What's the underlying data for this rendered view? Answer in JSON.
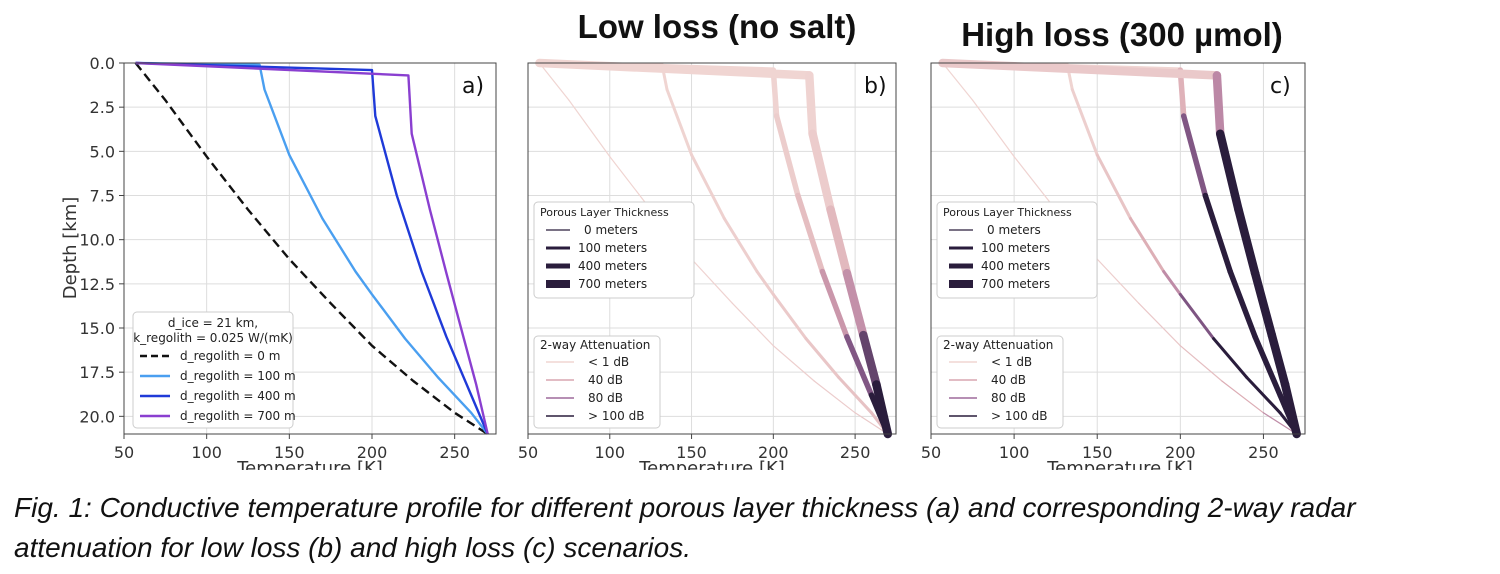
{
  "chart_data": [
    {
      "type": "line",
      "panel_label": "a)",
      "title": "",
      "xlabel": "Temperature [K]",
      "ylabel": "Depth [km]",
      "xlim": [
        50,
        275
      ],
      "ylim": [
        21,
        0
      ],
      "xticks": [
        "50",
        "100",
        "150",
        "200",
        "250"
      ],
      "yticks": [
        "0.0",
        "2.5",
        "5.0",
        "7.5",
        "10.0",
        "12.5",
        "15.0",
        "17.5",
        "20.0"
      ],
      "grid": true,
      "legend": {
        "placement": "bottom-left",
        "header_line1": "d_ice = 21 km,",
        "header_line2": "k_regolith = 0.025 W/(mK)",
        "entries": [
          "d_regolith = 0 m",
          "d_regolith = 100 m",
          "d_regolith = 400 m",
          "d_regolith = 700 m"
        ]
      },
      "series": [
        {
          "name": "d_regolith = 0 m",
          "color": "#111111",
          "dashed": true,
          "x": [
            57,
            75,
            100,
            125,
            150,
            175,
            200,
            225,
            250,
            270
          ],
          "y": [
            0,
            2.1,
            5.3,
            8.3,
            11.1,
            13.6,
            16.0,
            18.0,
            19.8,
            21
          ]
        },
        {
          "name": "d_regolith = 100 m",
          "color": "#4a9ff0",
          "x": [
            57,
            132,
            135,
            150,
            170,
            190,
            200,
            220,
            240,
            260,
            270
          ],
          "y": [
            0,
            0.1,
            1.5,
            5.2,
            8.8,
            11.8,
            13.1,
            15.6,
            17.8,
            19.8,
            21
          ]
        },
        {
          "name": "d_regolith = 400 m",
          "color": "#1f3ad8",
          "x": [
            57,
            200,
            202,
            215,
            230,
            245,
            260,
            270
          ],
          "y": [
            0,
            0.4,
            3.0,
            7.5,
            11.8,
            15.5,
            18.8,
            21
          ]
        },
        {
          "name": "d_regolith = 700 m",
          "color": "#8a3fd0",
          "x": [
            57,
            222,
            224,
            235,
            245,
            255,
            263,
            270
          ],
          "y": [
            0,
            0.7,
            4.0,
            8.3,
            11.9,
            15.4,
            18.2,
            21
          ]
        }
      ]
    },
    {
      "type": "line",
      "panel_label": "b)",
      "title": "Low loss (no salt)",
      "xlabel": "Temperature [K]",
      "ylabel": "",
      "xlim": [
        50,
        275
      ],
      "ylim": [
        21,
        0
      ],
      "xticks": [
        "50",
        "100",
        "150",
        "200",
        "250"
      ],
      "yticks": [
        "0.0",
        "2.5",
        "5.0",
        "7.5",
        "10.0",
        "12.5",
        "15.0",
        "17.5",
        "20.0"
      ],
      "grid": true,
      "legend": {
        "placement": "center-left",
        "thickness_title": "Porous Layer Thickness",
        "thickness_entries": [
          "0 meters",
          "100 meters",
          "400 meters",
          "700 meters"
        ],
        "attenuation_title": "2-way Attenuation",
        "attenuation_entries": [
          "< 1 dB",
          "40 dB",
          "80 dB",
          "> 100 dB"
        ]
      },
      "series": [
        {
          "name": "0 meters",
          "x": [
            57,
            75,
            100,
            125,
            150,
            175,
            200,
            225,
            250,
            270
          ],
          "y": [
            0,
            2.1,
            5.3,
            8.3,
            11.1,
            13.6,
            16.0,
            18.0,
            19.8,
            21
          ],
          "attenuation_db": [
            0,
            0.2,
            0.5,
            0.8,
            1.2,
            2,
            4,
            6,
            9,
            12
          ]
        },
        {
          "name": "100 meters",
          "x": [
            57,
            132,
            135,
            150,
            170,
            190,
            200,
            220,
            240,
            260,
            270
          ],
          "y": [
            0,
            0.1,
            1.5,
            5.2,
            8.8,
            11.8,
            13.1,
            15.6,
            17.8,
            19.8,
            21
          ],
          "attenuation_db": [
            0,
            0,
            0.5,
            2,
            4,
            6,
            8,
            11,
            14,
            18,
            20
          ]
        },
        {
          "name": "400 meters",
          "x": [
            57,
            200,
            202,
            215,
            230,
            245,
            260,
            270
          ],
          "y": [
            0,
            0.4,
            3.0,
            7.5,
            11.8,
            15.5,
            18.8,
            21
          ],
          "attenuation_db": [
            0,
            0,
            3,
            10,
            30,
            70,
            100,
            120
          ]
        },
        {
          "name": "700 meters",
          "x": [
            57,
            222,
            224,
            235,
            245,
            255,
            263,
            270
          ],
          "y": [
            0,
            0.7,
            4.0,
            8.3,
            11.9,
            15.4,
            18.2,
            21
          ],
          "attenuation_db": [
            0,
            0,
            3,
            12,
            35,
            75,
            105,
            120
          ]
        }
      ]
    },
    {
      "type": "line",
      "panel_label": "c)",
      "title": "High loss (300 µmol)",
      "xlabel": "Temperature [K]",
      "ylabel": "",
      "xlim": [
        50,
        275
      ],
      "ylim": [
        21,
        0
      ],
      "xticks": [
        "50",
        "100",
        "150",
        "200",
        "250"
      ],
      "yticks": [
        "0.0",
        "2.5",
        "5.0",
        "7.5",
        "10.0",
        "12.5",
        "15.0",
        "17.5",
        "20.0"
      ],
      "grid": true,
      "legend": {
        "placement": "center-left",
        "thickness_title": "Porous Layer Thickness",
        "thickness_entries": [
          "0 meters",
          "100 meters",
          "400 meters",
          "700 meters"
        ],
        "attenuation_title": "2-way Attenuation",
        "attenuation_entries": [
          "< 1 dB",
          "40 dB",
          "80 dB",
          "> 100 dB"
        ]
      },
      "series": [
        {
          "name": "0 meters",
          "x": [
            57,
            75,
            100,
            125,
            150,
            175,
            200,
            225,
            250,
            270
          ],
          "y": [
            0,
            2.1,
            5.3,
            8.3,
            11.1,
            13.6,
            16.0,
            18.0,
            19.8,
            21
          ],
          "attenuation_db": [
            0,
            0.5,
            1,
            2,
            4,
            8,
            14,
            25,
            45,
            70
          ]
        },
        {
          "name": "100 meters",
          "x": [
            57,
            132,
            135,
            150,
            170,
            190,
            200,
            220,
            240,
            260,
            270
          ],
          "y": [
            0,
            0.1,
            1.5,
            5.2,
            8.8,
            11.8,
            13.1,
            15.6,
            17.8,
            19.8,
            21
          ],
          "attenuation_db": [
            0,
            0,
            2,
            8,
            20,
            45,
            70,
            101,
            110,
            120,
            120
          ]
        },
        {
          "name": "400 meters",
          "x": [
            57,
            200,
            202,
            215,
            230,
            245,
            260,
            270
          ],
          "y": [
            0,
            0.4,
            3.0,
            7.5,
            11.8,
            15.5,
            18.8,
            21
          ],
          "attenuation_db": [
            0,
            0,
            60,
            110,
            120,
            120,
            120,
            120
          ]
        },
        {
          "name": "700 meters",
          "x": [
            57,
            222,
            224,
            235,
            245,
            255,
            263,
            270
          ],
          "y": [
            0,
            0.7,
            4.0,
            8.3,
            11.9,
            15.4,
            18.2,
            21
          ],
          "attenuation_db": [
            0,
            20,
            100,
            120,
            120,
            120,
            120,
            120
          ]
        }
      ]
    }
  ],
  "caption": "Fig. 1: Conductive temperature profile for different porous layer thickness (a) and corresponding 2-way radar attenuation for low loss (b) and high loss (c) scenarios.",
  "colors": {
    "attenuation_low": "#f0d5d2",
    "attenuation_40": "#d9a6b0",
    "attenuation_80": "#9e6a9c",
    "attenuation_high": "#2a1d3c"
  }
}
